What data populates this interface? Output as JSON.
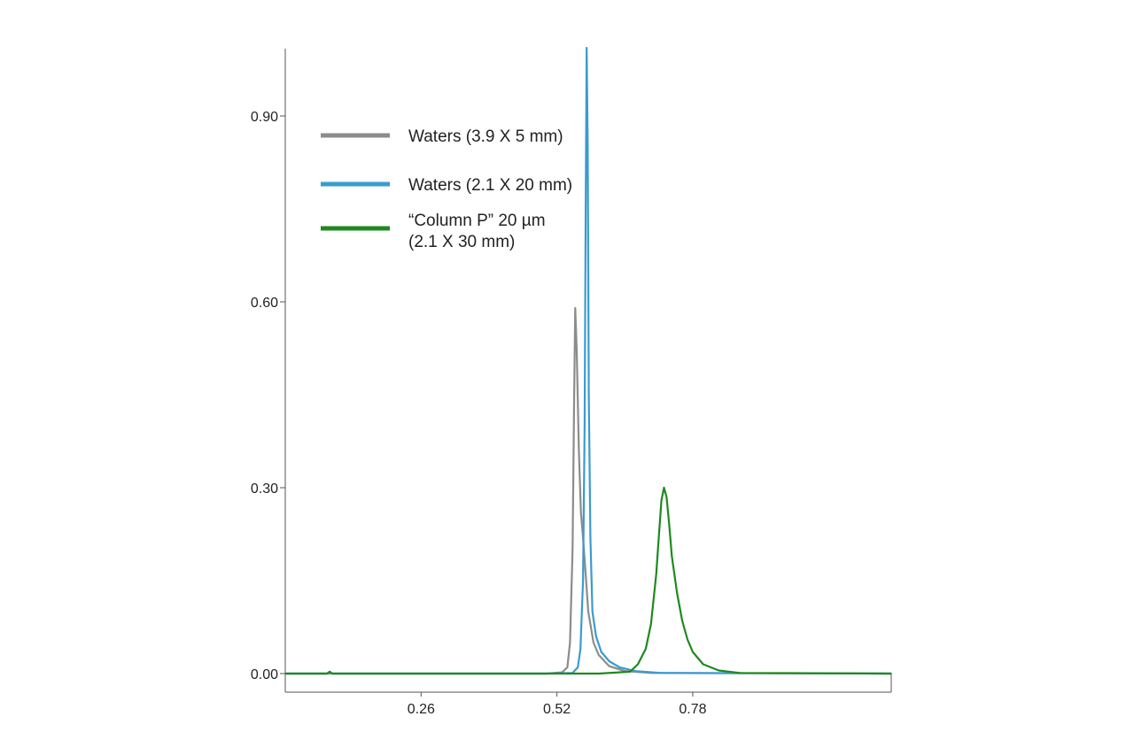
{
  "chart_data": {
    "type": "line",
    "title": "",
    "xlabel": "",
    "ylabel": "",
    "xlim": [
      0.0,
      1.16
    ],
    "ylim": [
      -0.03,
      1.03
    ],
    "grid": false,
    "legend_position": "top-left",
    "xticks": [
      {
        "value": 0.26,
        "label": "0.26"
      },
      {
        "value": 0.52,
        "label": "0.52"
      },
      {
        "value": 0.78,
        "label": "0.78"
      }
    ],
    "yticks": [
      {
        "value": 0.0,
        "label": "0.00"
      },
      {
        "value": 0.3,
        "label": "0.30"
      },
      {
        "value": 0.6,
        "label": "0.60"
      },
      {
        "value": 0.9,
        "label": "0.90"
      }
    ],
    "series": [
      {
        "name": "Waters (3.9 X 5 mm)",
        "legend_lines": [
          "Waters (3.9 X 5 mm)"
        ],
        "color": "#8c8c8c",
        "points": [
          [
            0.0,
            0.0
          ],
          [
            0.2,
            0.0
          ],
          [
            0.5,
            0.0
          ],
          [
            0.53,
            0.002
          ],
          [
            0.54,
            0.01
          ],
          [
            0.545,
            0.05
          ],
          [
            0.55,
            0.2
          ],
          [
            0.553,
            0.45
          ],
          [
            0.555,
            0.59
          ],
          [
            0.558,
            0.52
          ],
          [
            0.562,
            0.36
          ],
          [
            0.566,
            0.26
          ],
          [
            0.57,
            0.22
          ],
          [
            0.575,
            0.16
          ],
          [
            0.58,
            0.1
          ],
          [
            0.59,
            0.05
          ],
          [
            0.6,
            0.03
          ],
          [
            0.62,
            0.012
          ],
          [
            0.65,
            0.004
          ],
          [
            0.7,
            0.001
          ],
          [
            1.16,
            0.0
          ]
        ]
      },
      {
        "name": "Waters (2.1 X 20 mm)",
        "legend_lines": [
          "Waters (2.1 X 20 mm)"
        ],
        "color": "#3a9bd0",
        "points": [
          [
            0.0,
            0.0
          ],
          [
            0.08,
            0.0
          ],
          [
            0.085,
            0.003
          ],
          [
            0.09,
            0.0
          ],
          [
            0.5,
            0.0
          ],
          [
            0.55,
            0.001
          ],
          [
            0.56,
            0.01
          ],
          [
            0.565,
            0.04
          ],
          [
            0.57,
            0.15
          ],
          [
            0.573,
            0.4
          ],
          [
            0.575,
            0.75
          ],
          [
            0.577,
            1.01
          ],
          [
            0.579,
            0.85
          ],
          [
            0.581,
            0.45
          ],
          [
            0.584,
            0.22
          ],
          [
            0.588,
            0.1
          ],
          [
            0.595,
            0.06
          ],
          [
            0.605,
            0.035
          ],
          [
            0.62,
            0.02
          ],
          [
            0.64,
            0.01
          ],
          [
            0.67,
            0.004
          ],
          [
            0.72,
            0.001
          ],
          [
            1.16,
            0.0
          ]
        ]
      },
      {
        "name": "“Column P” 20 µm (2.1 X 30 mm)",
        "legend_lines": [
          "“Column P” 20 µm",
          "(2.1 X 30 mm)"
        ],
        "color": "#1e8a1e",
        "points": [
          [
            0.0,
            0.0
          ],
          [
            0.08,
            0.0
          ],
          [
            0.085,
            0.003
          ],
          [
            0.09,
            0.0
          ],
          [
            0.6,
            0.0
          ],
          [
            0.66,
            0.003
          ],
          [
            0.675,
            0.015
          ],
          [
            0.69,
            0.04
          ],
          [
            0.7,
            0.08
          ],
          [
            0.71,
            0.16
          ],
          [
            0.715,
            0.22
          ],
          [
            0.72,
            0.28
          ],
          [
            0.725,
            0.3
          ],
          [
            0.73,
            0.285
          ],
          [
            0.735,
            0.24
          ],
          [
            0.74,
            0.19
          ],
          [
            0.75,
            0.13
          ],
          [
            0.76,
            0.085
          ],
          [
            0.77,
            0.055
          ],
          [
            0.78,
            0.035
          ],
          [
            0.8,
            0.015
          ],
          [
            0.83,
            0.005
          ],
          [
            0.87,
            0.001
          ],
          [
            1.16,
            0.0
          ]
        ]
      }
    ]
  }
}
